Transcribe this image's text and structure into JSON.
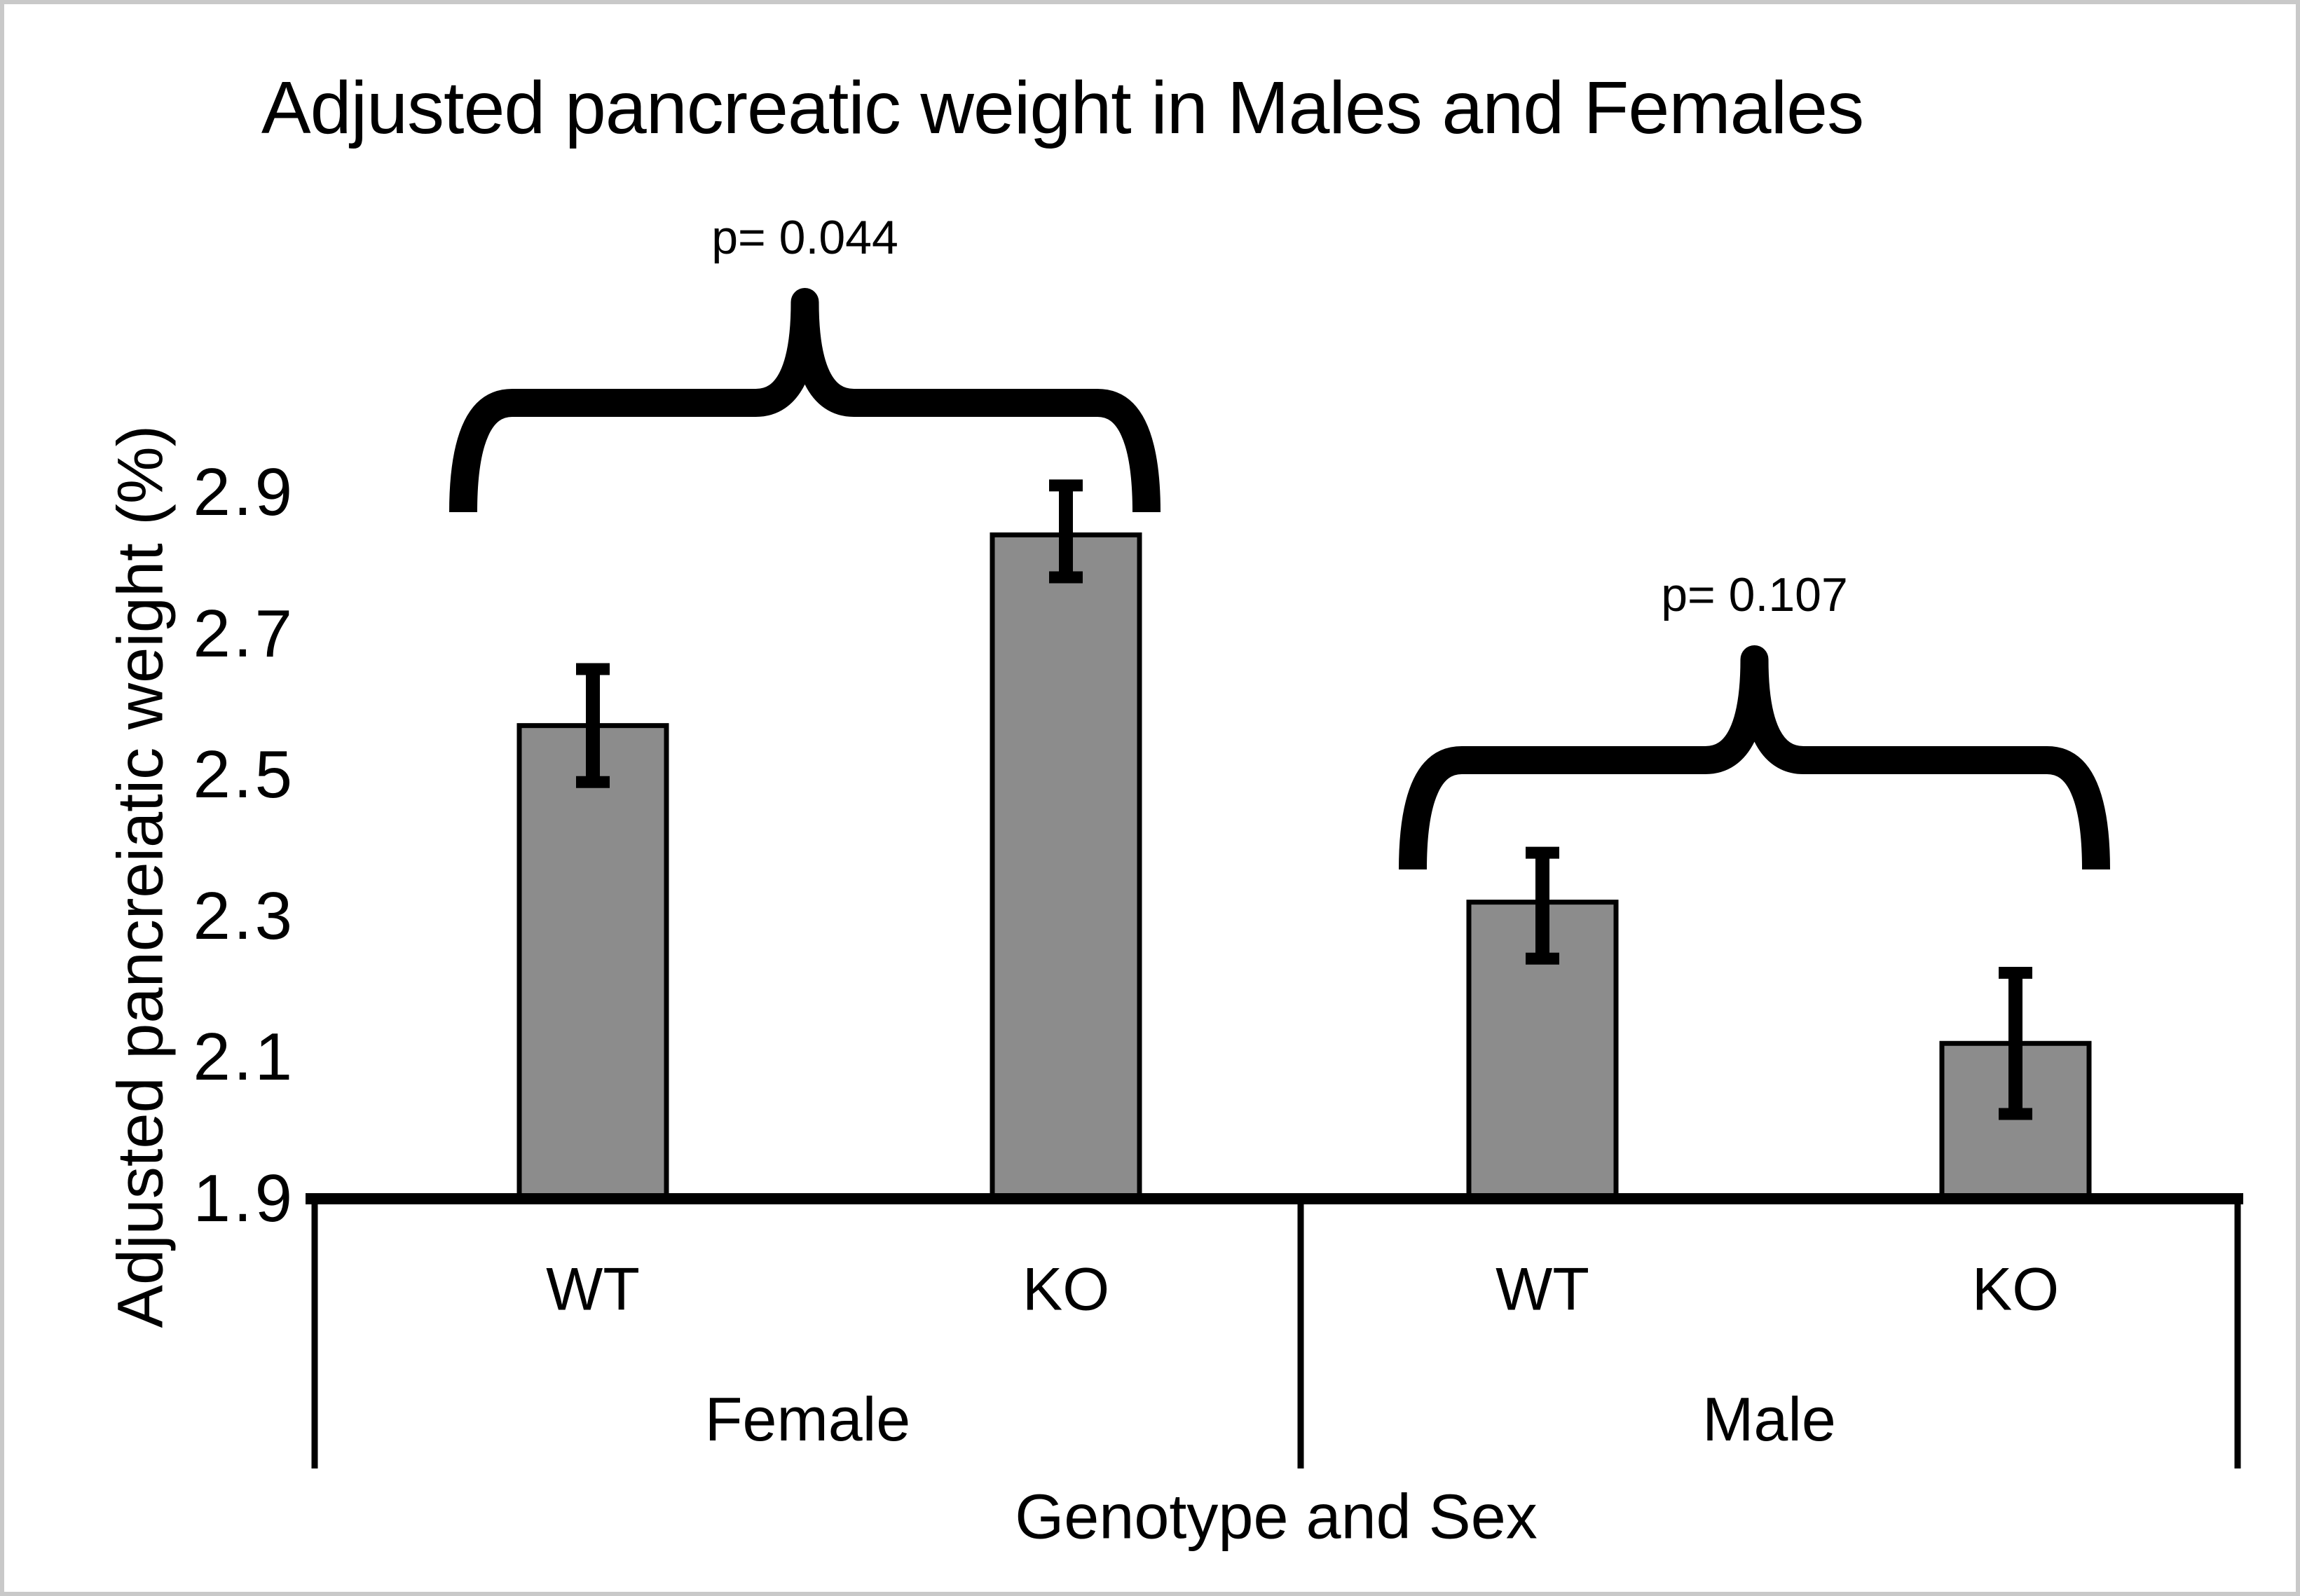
{
  "chart_data": {
    "type": "bar",
    "title": "Adjusted pancreatic weight in Males and Females",
    "ylabel": "Adjusted pancreiatic weight (%)",
    "xlabel": "Genotype and Sex",
    "y_ticks": [
      "1.9",
      "2.1",
      "2.3",
      "2.5",
      "2.7",
      "2.9"
    ],
    "ylim": [
      1.9,
      3.0
    ],
    "grid": false,
    "legend": "none",
    "groups": [
      {
        "label": "Female",
        "p_label": "p= 0.044",
        "bars": [
          {
            "label": "WT",
            "value": 2.57,
            "err_low": 2.49,
            "err_high": 2.65
          },
          {
            "label": "KO",
            "value": 2.84,
            "err_low": 2.78,
            "err_high": 2.91
          }
        ]
      },
      {
        "label": "Male",
        "p_label": "p= 0.107",
        "bars": [
          {
            "label": "WT",
            "value": 2.32,
            "err_low": 2.24,
            "err_high": 2.39
          },
          {
            "label": "KO",
            "value": 2.12,
            "err_low": 2.02,
            "err_high": 2.22
          }
        ]
      }
    ],
    "colors": {
      "bar_fill": "#8C8C8C",
      "bar_stroke": "#000000",
      "axis": "#000000",
      "text": "#000000",
      "frame_border": "#C9C9C9"
    }
  }
}
